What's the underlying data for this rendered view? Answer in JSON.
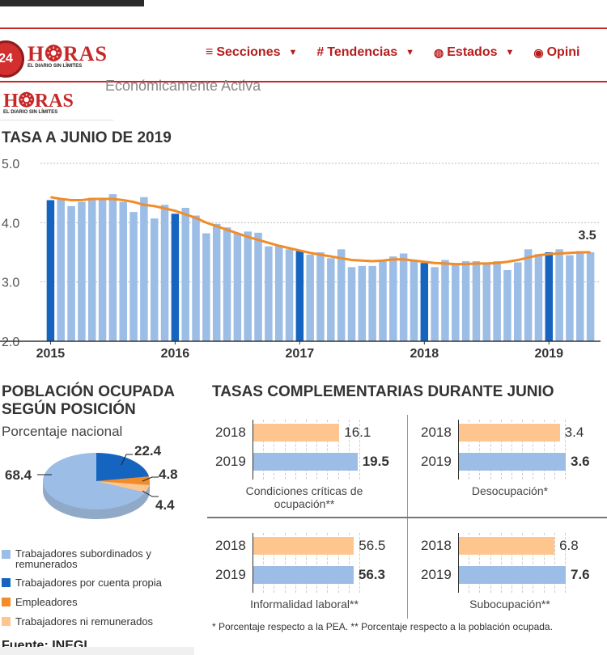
{
  "colors": {
    "accent_red": "#c62828",
    "bar_light": "#9bbde6",
    "bar_dark": "#1565c0",
    "trend": "#f28c28",
    "orange_light": "#ffc58f",
    "orange": "#f28c28"
  },
  "header": {
    "badge_number": "24",
    "logo_text": "H❂RAS",
    "logo_tagline": "EL DIARIO SIN LÍMITES",
    "nav": [
      {
        "icon": "menu-icon",
        "symbol": "≡",
        "label": "Secciones"
      },
      {
        "icon": "hash-icon",
        "symbol": "#",
        "label": "Tendencias"
      },
      {
        "icon": "globe-icon",
        "symbol": "🌐",
        "label": "Estados"
      },
      {
        "icon": "user-icon",
        "symbol": "◉",
        "label": "Opini"
      }
    ]
  },
  "page": {
    "subtitle": "Económicamente Activa"
  },
  "chart_data": [
    {
      "type": "bar",
      "title": "TASA A JUNIO DE 2019",
      "ylim": [
        2.0,
        5.0
      ],
      "yticks": [
        "5.0",
        "4.0",
        "3.0",
        "2.0"
      ],
      "xticks": [
        "2015",
        "2016",
        "2017",
        "2018",
        "2019"
      ],
      "annotation": "3.5",
      "values": [
        4.38,
        4.41,
        4.28,
        4.35,
        4.42,
        4.38,
        4.48,
        4.35,
        4.18,
        4.43,
        4.07,
        4.3,
        4.15,
        4.25,
        4.12,
        3.82,
        3.98,
        3.92,
        3.82,
        3.85,
        3.83,
        3.6,
        3.62,
        3.55,
        3.52,
        3.46,
        3.5,
        3.4,
        3.55,
        3.25,
        3.27,
        3.27,
        3.35,
        3.43,
        3.48,
        3.35,
        3.32,
        3.25,
        3.37,
        3.3,
        3.35,
        3.35,
        3.32,
        3.35,
        3.2,
        3.33,
        3.55,
        3.47,
        3.5,
        3.55,
        3.45,
        3.52,
        3.5
      ],
      "trend": [
        4.43,
        4.4,
        4.38,
        4.38,
        4.4,
        4.4,
        4.4,
        4.38,
        4.35,
        4.3,
        4.28,
        4.24,
        4.2,
        4.14,
        4.08,
        4.0,
        3.94,
        3.88,
        3.82,
        3.76,
        3.71,
        3.66,
        3.61,
        3.57,
        3.53,
        3.49,
        3.46,
        3.43,
        3.4,
        3.37,
        3.36,
        3.35,
        3.36,
        3.38,
        3.38,
        3.36,
        3.34,
        3.32,
        3.31,
        3.3,
        3.3,
        3.31,
        3.31,
        3.32,
        3.34,
        3.37,
        3.41,
        3.45,
        3.47,
        3.48,
        3.49,
        3.5,
        3.5
      ],
      "dark_bars": [
        0,
        12,
        24,
        36,
        48
      ]
    },
    {
      "type": "pie",
      "title": "POBLACIÓN OCUPADA SEGÚN POSICIÓN",
      "subtitle": "Porcentaje nacional",
      "slices": [
        {
          "name": "Trabajadores subordinados y remunerados",
          "value": 68.4
        },
        {
          "name": "Trabajadores por cuenta propia",
          "value": 22.4
        },
        {
          "name": "Empleadores",
          "value": 4.8
        },
        {
          "name": "Trabajadores ni remunerados",
          "value": 4.4
        }
      ],
      "labels": [
        "68.4",
        "22.4",
        "4.8",
        "4.4"
      ]
    },
    {
      "type": "bar",
      "title": "TASAS COMPLEMENTARIAS DURANTE JUNIO",
      "panels": [
        {
          "caption": "Condiciones críticas de ocupación**",
          "max": 20,
          "rows": [
            {
              "year": "2018",
              "value": 16.1,
              "label": "16.1"
            },
            {
              "year": "2019",
              "value": 19.5,
              "label": "19.5"
            }
          ]
        },
        {
          "caption": "Desocupación*",
          "max": 3.6,
          "rows": [
            {
              "year": "2018",
              "value": 3.4,
              "label": "3.4"
            },
            {
              "year": "2019",
              "value": 3.6,
              "label": "3.6"
            }
          ]
        },
        {
          "caption": "Informalidad laboral**",
          "max": 60,
          "rows": [
            {
              "year": "2018",
              "value": 56.5,
              "label": "56.5"
            },
            {
              "year": "2019",
              "value": 56.3,
              "label": "56.3"
            }
          ]
        },
        {
          "caption": "Subocupación**",
          "max": 7.6,
          "rows": [
            {
              "year": "2018",
              "value": 6.8,
              "label": "6.8"
            },
            {
              "year": "2019",
              "value": 7.6,
              "label": "7.6"
            }
          ]
        }
      ]
    }
  ],
  "footnote": "* Porcentaje respecto a la PEA. ** Porcentaje respecto a la población ocupada.",
  "source": "Fuente: INEGI"
}
